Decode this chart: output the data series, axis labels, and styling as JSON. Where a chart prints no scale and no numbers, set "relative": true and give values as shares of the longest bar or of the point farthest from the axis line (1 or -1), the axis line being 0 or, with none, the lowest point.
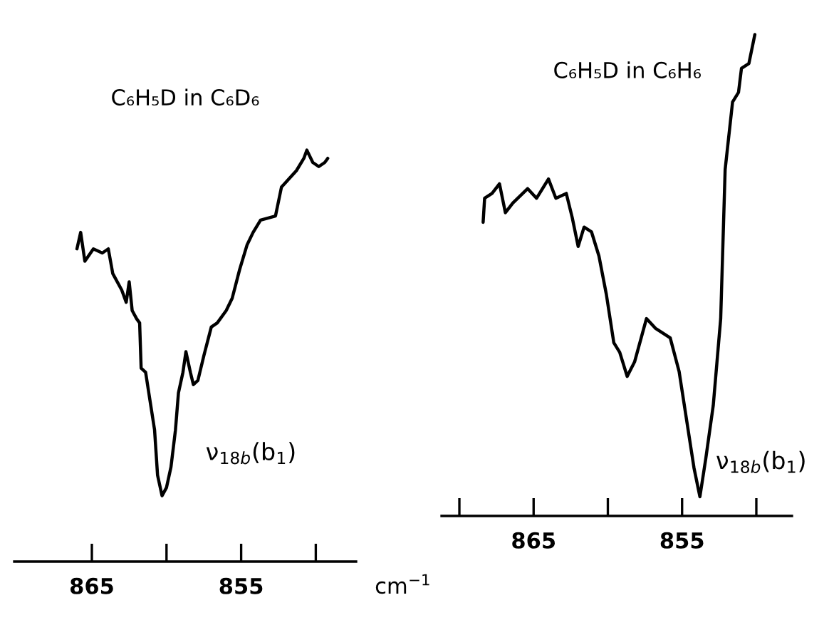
{
  "chart_data": [
    {
      "type": "line",
      "title": "C₆H₅D in C₆D₆",
      "relative": true,
      "xlim": [
        870.2,
        847.3
      ],
      "xticks": [
        865,
        {
          "value": 860,
          "label": null
        },
        855,
        {
          "value": 850,
          "label": null
        }
      ],
      "annotations": [
        {
          "text": "ν$_{18b}$(b$_{1}$)",
          "x": 860.3,
          "y": 0.16
        }
      ],
      "series": [
        {
          "color": "#000000",
          "x": [
            866.0,
            865.75,
            865.47,
            864.9,
            864.3,
            863.9,
            863.6,
            863.0,
            862.7,
            862.5,
            862.3,
            862.0,
            861.8,
            861.7,
            861.4,
            861.1,
            860.8,
            860.6,
            860.3,
            860.0,
            859.7,
            859.4,
            859.2,
            858.9,
            858.7,
            858.4,
            858.2,
            857.9,
            857.5,
            857.0,
            856.6,
            856.0,
            855.6,
            855.1,
            854.6,
            854.2,
            853.7,
            852.7,
            852.3,
            851.8,
            851.3,
            850.8,
            850.6,
            850.2,
            849.8,
            849.4,
            849.2
          ],
          "values": [
            0.76,
            0.8,
            0.73,
            0.76,
            0.75,
            0.76,
            0.7,
            0.66,
            0.63,
            0.68,
            0.61,
            0.59,
            0.58,
            0.47,
            0.46,
            0.39,
            0.32,
            0.21,
            0.16,
            0.18,
            0.23,
            0.32,
            0.41,
            0.46,
            0.51,
            0.46,
            0.43,
            0.44,
            0.5,
            0.57,
            0.58,
            0.61,
            0.64,
            0.71,
            0.77,
            0.8,
            0.83,
            0.84,
            0.91,
            0.93,
            0.95,
            0.98,
            1,
            0.97,
            0.96,
            0.97,
            0.98
          ]
        }
      ]
    },
    {
      "type": "line",
      "title": "C₆H₅D in C₆H₆",
      "xlabel": "cm$^{−1}$",
      "relative": true,
      "xlim": [
        871.2,
        847.6
      ],
      "xticks": [
        {
          "value": 870,
          "label": null
        },
        865,
        {
          "value": 860,
          "label": null
        },
        855,
        {
          "value": 850,
          "label": null
        }
      ],
      "annotations": [
        {
          "text": "ν$_{18b}$(b$_{1}$)",
          "x": 853.8,
          "y": 0.04
        }
      ],
      "series": [
        {
          "color": "#000000",
          "x": [
            868.4,
            868.3,
            867.8,
            867.3,
            866.9,
            866.4,
            865.4,
            864.8,
            864.0,
            863.5,
            862.8,
            862.4,
            862.0,
            861.6,
            861.1,
            860.6,
            860.1,
            859.6,
            859.2,
            858.7,
            858.2,
            857.4,
            856.8,
            855.8,
            855.2,
            854.7,
            854.2,
            853.8,
            853.4,
            852.9,
            852.4,
            852.1,
            851.6,
            851.2,
            851.0,
            850.5,
            850.1
          ],
          "values": [
            0.61,
            0.66,
            0.67,
            0.69,
            0.63,
            0.65,
            0.68,
            0.66,
            0.7,
            0.66,
            0.67,
            0.62,
            0.56,
            0.6,
            0.59,
            0.54,
            0.46,
            0.36,
            0.34,
            0.29,
            0.32,
            0.41,
            0.39,
            0.37,
            0.3,
            0.2,
            0.1,
            0.04,
            0.12,
            0.23,
            0.41,
            0.72,
            0.86,
            0.88,
            0.93,
            0.94,
            1
          ]
        }
      ]
    }
  ]
}
